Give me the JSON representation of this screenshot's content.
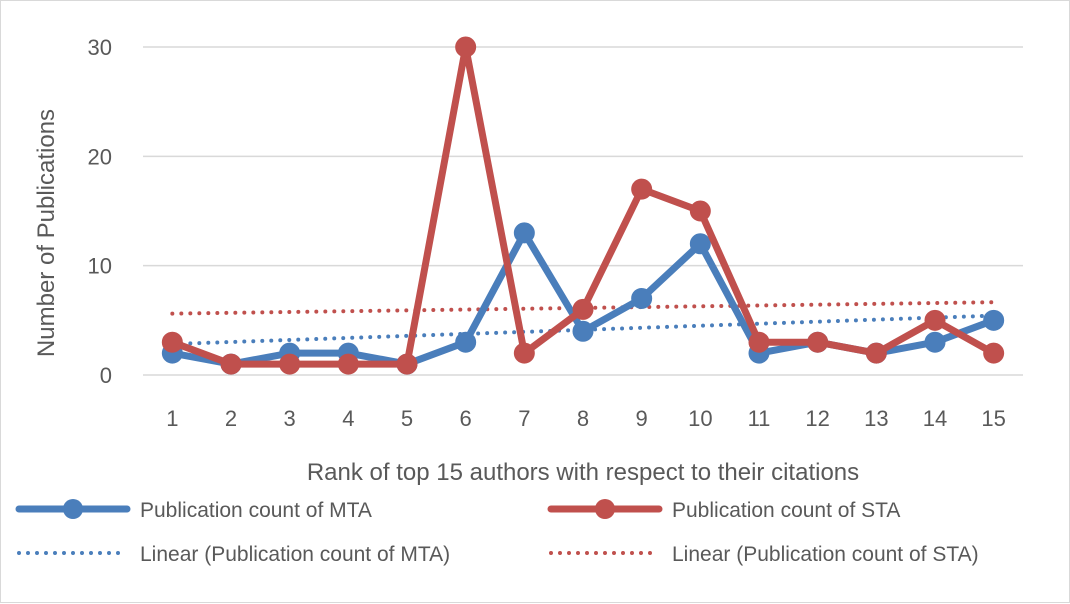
{
  "chart_data": {
    "type": "line",
    "title": "",
    "xlabel": "Rank of top 15 authors with respect to their citations",
    "ylabel": "Number of Publications",
    "categories": [
      "1",
      "2",
      "3",
      "4",
      "5",
      "6",
      "7",
      "8",
      "9",
      "10",
      "11",
      "12",
      "13",
      "14",
      "15"
    ],
    "ylim": [
      0,
      30
    ],
    "yticks": [
      0,
      10,
      20,
      30
    ],
    "grid": true,
    "legend_position": "bottom",
    "series": [
      {
        "name": "Publication count of MTA",
        "values": [
          2,
          1,
          2,
          2,
          1,
          3,
          13,
          4,
          7,
          12,
          2,
          3,
          2,
          3,
          5
        ],
        "color": "#4a7ebb",
        "style": "line-marker"
      },
      {
        "name": "Publication count of STA",
        "values": [
          3,
          1,
          1,
          1,
          1,
          30,
          2,
          6,
          17,
          15,
          3,
          3,
          2,
          5,
          2
        ],
        "color": "#c0504d",
        "style": "line-marker"
      }
    ],
    "trendlines": [
      {
        "name": "Linear (Publication count of MTA)",
        "of": 0,
        "type": "linear",
        "color": "#4a7ebb",
        "style": "dotted"
      },
      {
        "name": "Linear (Publication count of STA)",
        "of": 1,
        "type": "linear",
        "color": "#c0504d",
        "style": "dotted"
      }
    ]
  }
}
